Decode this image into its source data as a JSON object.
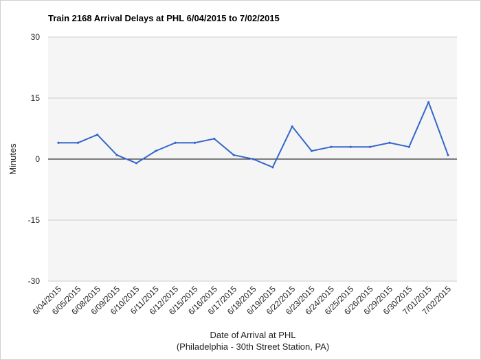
{
  "chart_data": {
    "type": "line",
    "title": "Train 2168 Arrival Delays at PHL 6/04/2015 to 7/02/2015",
    "xlabel": "Date of Arrival at PHL",
    "xlabel_sub": "(Philadelphia - 30th Street Station, PA)",
    "ylabel": "Minutes",
    "ylim": [
      -30,
      30
    ],
    "yticks": [
      30,
      15,
      0,
      -15,
      -30
    ],
    "categories": [
      "6/04/2015",
      "6/05/2015",
      "6/08/2015",
      "6/09/2015",
      "6/10/2015",
      "6/11/2015",
      "6/12/2015",
      "6/15/2015",
      "6/16/2015",
      "6/17/2015",
      "6/18/2015",
      "6/19/2015",
      "6/22/2015",
      "6/23/2015",
      "6/24/2015",
      "6/25/2015",
      "6/26/2015",
      "6/29/2015",
      "6/30/2015",
      "7/01/2015",
      "7/02/2015"
    ],
    "series": [
      {
        "values": [
          4,
          4,
          6,
          1,
          -1,
          2,
          4,
          4,
          5,
          1,
          0,
          -2,
          8,
          2,
          3,
          3,
          3,
          4,
          3,
          14,
          1
        ],
        "color": "#3366cc"
      }
    ],
    "grid": true,
    "plot_background": "#f5f5f5",
    "gridline_color": "#cccccc",
    "zero_line_color": "#000000"
  }
}
